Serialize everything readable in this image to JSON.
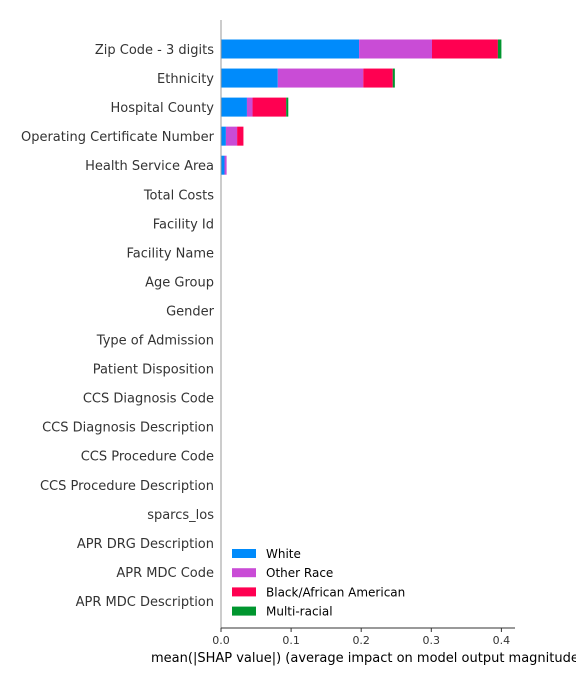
{
  "chart_data": {
    "type": "bar",
    "orientation": "horizontal",
    "stacked": true,
    "categories": [
      "Zip Code - 3 digits",
      "Ethnicity",
      "Hospital County",
      "Operating Certificate Number",
      "Health Service Area",
      "Total Costs",
      "Facility Id",
      "Facility Name",
      "Age Group",
      "Gender",
      "Type of Admission",
      "Patient Disposition",
      "CCS Diagnosis Code",
      "CCS Diagnosis Description",
      "CCS Procedure Code",
      "CCS Procedure Description",
      "sparcs_los",
      "APR DRG Description",
      "APR MDC Code",
      "APR MDC Description"
    ],
    "series": [
      {
        "name": "White",
        "color": "#008bfb",
        "values": [
          0.197,
          0.081,
          0.037,
          0.007,
          0.005,
          0,
          0,
          0,
          0,
          0,
          0,
          0,
          0,
          0,
          0,
          0,
          0,
          0,
          0,
          0
        ]
      },
      {
        "name": "Other Race",
        "color": "#c94cd6",
        "values": [
          0.104,
          0.122,
          0.008,
          0.016,
          0.003,
          0,
          0,
          0,
          0,
          0,
          0,
          0,
          0,
          0,
          0,
          0,
          0,
          0,
          0,
          0
        ]
      },
      {
        "name": "Black/African American",
        "color": "#ff0051",
        "values": [
          0.094,
          0.042,
          0.048,
          0.009,
          0,
          0,
          0,
          0,
          0,
          0,
          0,
          0,
          0,
          0,
          0,
          0,
          0,
          0,
          0,
          0
        ]
      },
      {
        "name": "Multi-racial",
        "color": "#00962f",
        "values": [
          0.005,
          0.003,
          0.003,
          0,
          0,
          0,
          0,
          0,
          0,
          0,
          0,
          0,
          0,
          0,
          0,
          0,
          0,
          0,
          0,
          0
        ]
      }
    ],
    "xticks": [
      "0.0",
      "0.1",
      "0.2",
      "0.3",
      "0.4"
    ],
    "xtick_values": [
      0,
      0.1,
      0.2,
      0.3,
      0.4
    ],
    "xlim": [
      0,
      0.42
    ],
    "xlabel": "mean(|SHAP value|) (average impact on model output magnitude)",
    "title": "",
    "legend_position": "lower-right",
    "grid": false
  }
}
